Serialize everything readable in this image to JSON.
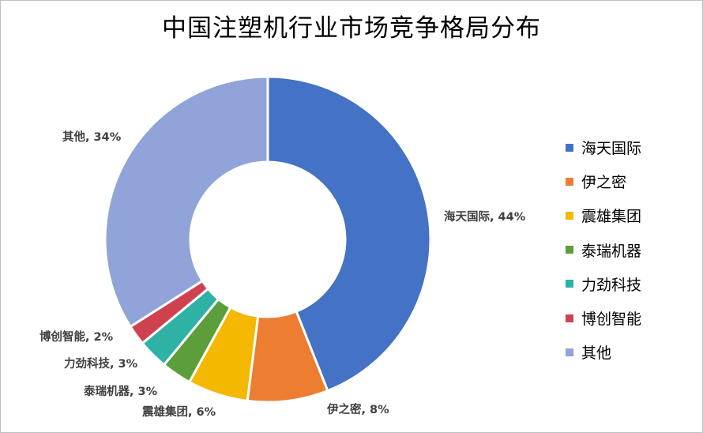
{
  "chart_data": {
    "type": "pie",
    "donut": true,
    "title": "中国注塑机行业市场竞争格局分布",
    "legend_position": "right",
    "slices": [
      {
        "name": "海天国际",
        "value": 44,
        "label": "海天国际, 44%",
        "color": "#4472C4"
      },
      {
        "name": "伊之密",
        "value": 8,
        "label": "伊之密, 8%",
        "color": "#ED7D31"
      },
      {
        "name": "震雄集团",
        "value": 6,
        "label": "震雄集团, 6%",
        "color": "#F4B800"
      },
      {
        "name": "泰瑞机器",
        "value": 3,
        "label": "泰瑞机器, 3%",
        "color": "#5B9E3A"
      },
      {
        "name": "力劲科技",
        "value": 3,
        "label": "力劲科技, 3%",
        "color": "#2FB2A6"
      },
      {
        "name": "博创智能",
        "value": 2,
        "label": "博创智能, 2%",
        "color": "#D0414F"
      },
      {
        "name": "其他",
        "value": 34,
        "label": "其他, 34%",
        "color": "#90A4D9"
      }
    ]
  }
}
